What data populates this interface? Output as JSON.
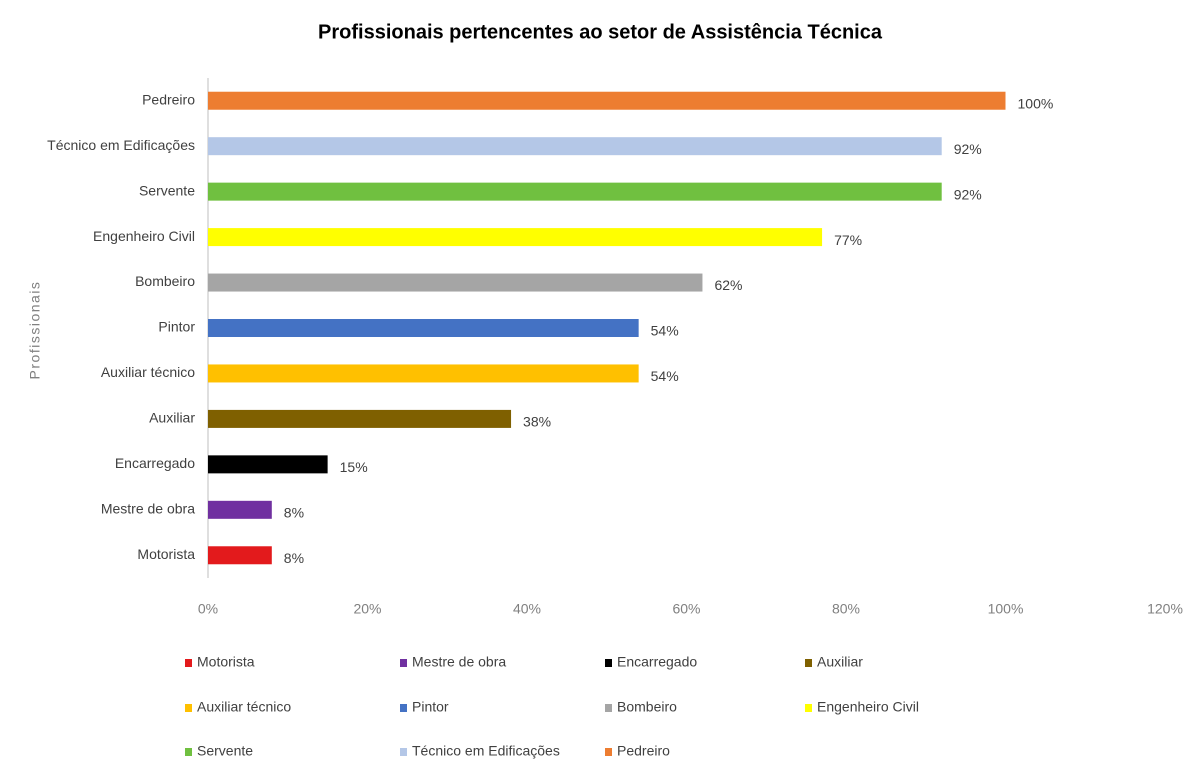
{
  "chart_data": {
    "type": "bar",
    "orientation": "horizontal",
    "title": "Profissionais  pertencentes ao setor de Assistência Técnica",
    "y_label": "Profissionais",
    "categories": [
      "Motorista",
      "Mestre de obra",
      "Encarregado",
      "Auxiliar",
      "Auxiliar técnico",
      "Pintor",
      "Bombeiro",
      "Engenheiro Civil",
      "Servente",
      "Técnico em Edificações",
      "Pedreiro"
    ],
    "values": [
      8,
      8,
      15,
      38,
      54,
      54,
      62,
      77,
      92,
      92,
      100
    ],
    "value_labels": [
      "8%",
      "8%",
      "15%",
      "38%",
      "54%",
      "54%",
      "62%",
      "77%",
      "92%",
      "92%",
      "100%"
    ],
    "colors": [
      "#e31a1c",
      "#7030a0",
      "#000000",
      "#7f6000",
      "#ffc000",
      "#4472c4",
      "#a5a5a5",
      "#ffff00",
      "#70c040",
      "#b4c7e7",
      "#ed7d31"
    ],
    "xlim": [
      0,
      120
    ],
    "xticks": [
      {
        "value": 0,
        "label": "0%"
      },
      {
        "value": 20,
        "label": "20%"
      },
      {
        "value": 40,
        "label": "40%"
      },
      {
        "value": 60,
        "label": "60%"
      },
      {
        "value": 80,
        "label": "80%"
      },
      {
        "value": 100,
        "label": "100%"
      },
      {
        "value": 120,
        "label": "120%"
      }
    ],
    "legend": "bottom"
  }
}
